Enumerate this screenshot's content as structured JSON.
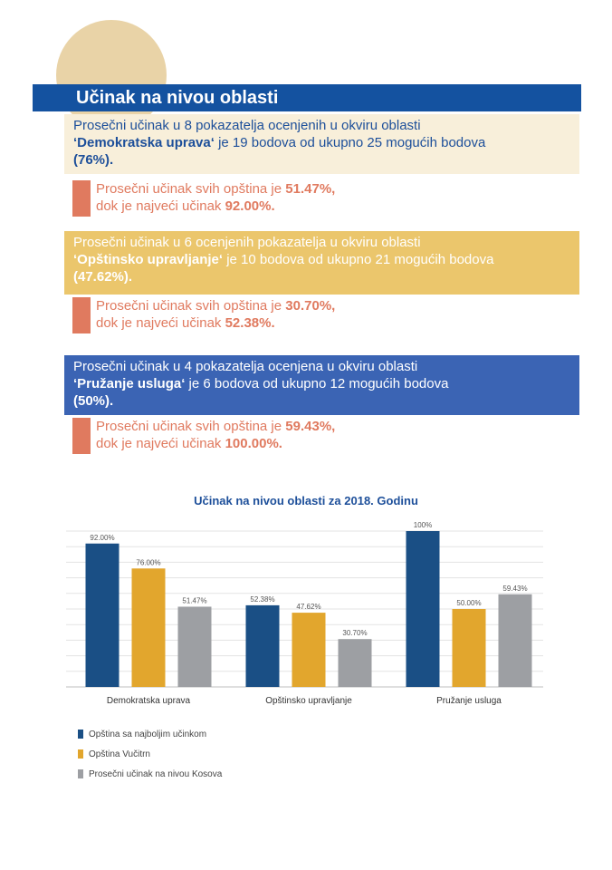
{
  "header": {
    "title": "Učinak na nivou oblasti"
  },
  "areas": [
    {
      "line1": "Prosečni učinak u 8 pokazatelja ocenjenih u okviru oblasti",
      "name": "‘Demokratska uprava‘",
      "line2": " je 19 bodova od ukupno 25 mogućih bodova",
      "percent": "(76%).",
      "avg_label": "Prosečni učinak svih opština je ",
      "avg_value": "51.47%,",
      "max_label": "dok je najveći učinak ",
      "max_value": "92.00%."
    },
    {
      "line1": "Prosečni učinak u 6 ocenjenih pokazatelja u okviru oblasti",
      "name": "‘Opštinsko upravljanje‘",
      "line2": " je 10 bodova od ukupno 21 mogućih bodova",
      "percent": "(47.62%).",
      "avg_label": "Prosečni učinak svih opština je ",
      "avg_value": "30.70%,",
      "max_label": "dok je najveći učinak ",
      "max_value": "52.38%."
    },
    {
      "line1": "Prosečni učinak u 4 pokazatelja ocenjena u okviru oblasti",
      "name": "‘Pružanje usluga‘",
      "line2": " je 6 bodova od ukupno 12 mogućih bodova",
      "percent": "(50%).",
      "avg_label": "Prosečni učinak svih opština je ",
      "avg_value": "59.43%,",
      "max_label": "dok je najveći učinak ",
      "max_value": "100.00%."
    }
  ],
  "colors": {
    "best": "#1a4f85",
    "vucitrn": "#e2a62d",
    "kosovo": "#9d9fa3"
  },
  "chart_data": {
    "type": "bar",
    "title": "Učinak na nivou oblasti za 2018. Godinu",
    "categories": [
      "Demokratska uprava",
      "Opštinsko upravljanje",
      "Pružanje usluga"
    ],
    "series": [
      {
        "name": "Opština sa najboljim učinkom",
        "values": [
          92.0,
          52.38,
          100
        ],
        "labels": [
          "92.00%",
          "52.38%",
          "100%"
        ]
      },
      {
        "name": "Opština Vučitrn",
        "values": [
          76.0,
          47.62,
          50.0
        ],
        "labels": [
          "76.00%",
          "47.62%",
          "50.00%"
        ]
      },
      {
        "name": "Prosečni učinak na nivou Kosova",
        "values": [
          51.47,
          30.7,
          59.43
        ],
        "labels": [
          "51.47%",
          "30.70%",
          "59.43%"
        ]
      }
    ],
    "ylim": [
      0,
      100
    ],
    "grid": true,
    "legend": "bottom-left"
  }
}
